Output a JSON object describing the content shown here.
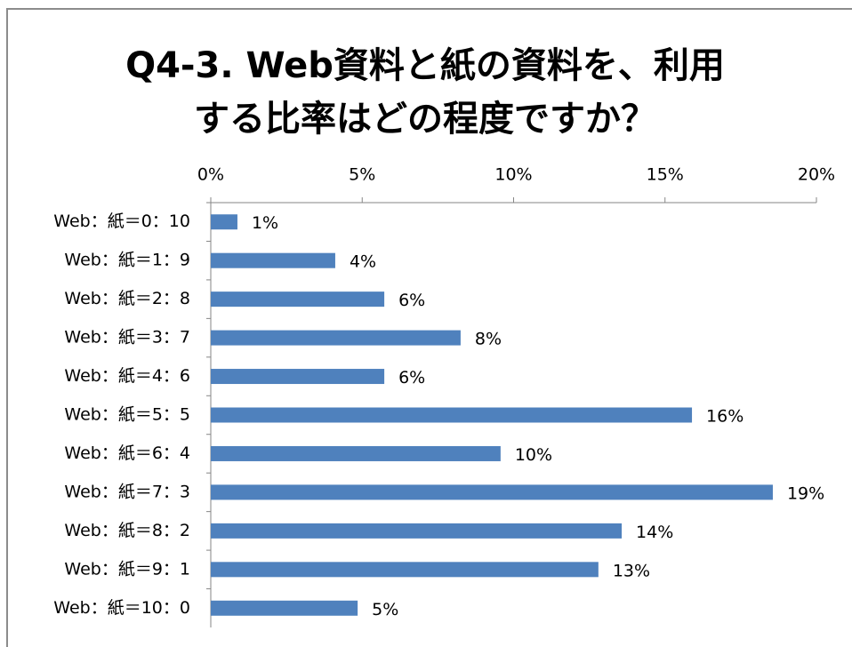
{
  "chart_data": {
    "type": "bar",
    "orientation": "horizontal",
    "title": [
      "Q4-3. Web資料と紙の資料を、利用",
      "する比率はどの程度ですか？"
    ],
    "categories": [
      "Web：紙＝0：10",
      "Web：紙＝1：9",
      "Web：紙＝2：8",
      "Web：紙＝3：7",
      "Web：紙＝4：6",
      "Web：紙＝5：5",
      "Web：紙＝6：4",
      "Web：紙＝7：3",
      "Web：紙＝8：2",
      "Web：紙＝9：1",
      "Web：紙＝10：0"
    ],
    "values": [
      0.88,
      4.11,
      5.73,
      8.25,
      5.73,
      15.89,
      9.57,
      18.56,
      13.57,
      12.8,
      4.85
    ],
    "value_labels": [
      "1%",
      "4%",
      "6%",
      "8%",
      "6%",
      "16%",
      "10%",
      "19%",
      "14%",
      "13%",
      "5%"
    ],
    "color": "#4f81bd",
    "xlim": [
      0,
      20
    ],
    "xticks": [
      {
        "value": 0,
        "label": "0%"
      },
      {
        "value": 5,
        "label": "5%"
      },
      {
        "value": 10,
        "label": "10%"
      },
      {
        "value": 15,
        "label": "15%"
      },
      {
        "value": 20,
        "label": "20%"
      }
    ],
    "grid": false
  }
}
